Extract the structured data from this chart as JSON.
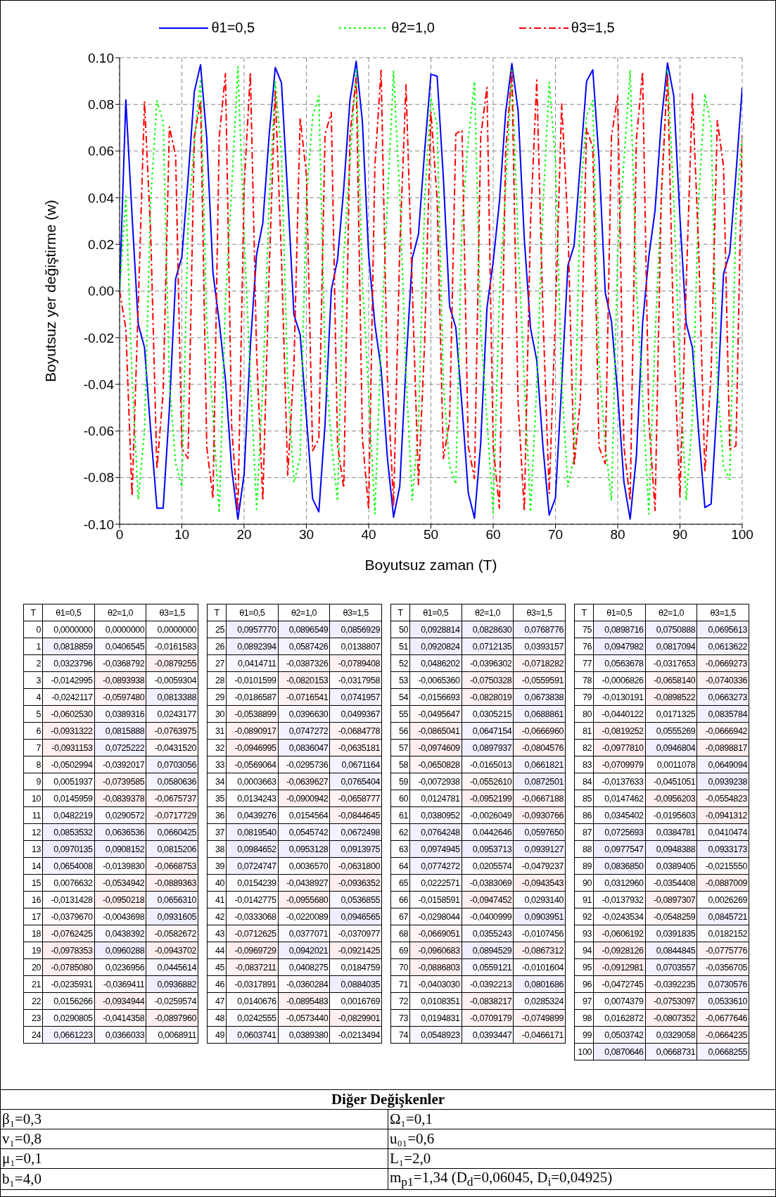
{
  "chart_data": [
    {
      "type": "line",
      "xlabel": "Boyutsuz zaman (T)",
      "ylabel": "Boyutsuz yer değiştirme (w)",
      "x": [
        0,
        1,
        2,
        3,
        4,
        5,
        6,
        7,
        8,
        9,
        10,
        11,
        12,
        13,
        14,
        15,
        16,
        17,
        18,
        19,
        20,
        21,
        22,
        23,
        24,
        25,
        26,
        27,
        28,
        29,
        30,
        31,
        32,
        33,
        34,
        35,
        36,
        37,
        38,
        39,
        40,
        41,
        42,
        43,
        44,
        45,
        46,
        47,
        48,
        49,
        50,
        51,
        52,
        53,
        54,
        55,
        56,
        57,
        58,
        59,
        60,
        61,
        62,
        63,
        64,
        65,
        66,
        67,
        68,
        69,
        70,
        71,
        72,
        73,
        74,
        75,
        76,
        77,
        78,
        79,
        80,
        81,
        82,
        83,
        84,
        85,
        86,
        87,
        88,
        89,
        90,
        91,
        92,
        93,
        94,
        95,
        96,
        97,
        98,
        99,
        100
      ],
      "series": [
        {
          "name": "θ1=0,5",
          "color": "#0000ff",
          "line_style": "solid",
          "values": [
            0.0,
            0.0818859,
            0.0323796,
            -0.0142995,
            -0.0242117,
            -0.060253,
            -0.0931322,
            -0.0931153,
            -0.0502994,
            0.0051937,
            0.0145959,
            0.0482219,
            0.0853532,
            0.0970135,
            0.0654008,
            0.0076632,
            -0.0131428,
            -0.037967,
            -0.0762425,
            -0.0978353,
            -0.078508,
            -0.0235931,
            0.0156266,
            0.0290805,
            0.0661223,
            0.095777,
            0.0892394,
            0.0414711,
            -0.0101599,
            -0.0186587,
            -0.0538899,
            -0.0890917,
            -0.0946995,
            -0.0569064,
            0.0003663,
            0.0134243,
            0.0439276,
            0.081954,
            0.0984652,
            0.0724747,
            0.0154239,
            -0.0142775,
            -0.0333068,
            -0.0712625,
            -0.0969729,
            -0.0837211,
            -0.0317891,
            0.0140676,
            0.0242555,
            0.0603741,
            0.0928814,
            0.0920824,
            0.0486202,
            -0.006536,
            -0.0156693,
            -0.0495647,
            -0.0865041,
            -0.0974609,
            -0.0650828,
            -0.0072938,
            0.0124781,
            0.0380952,
            0.0764248,
            0.0974945,
            0.0774272,
            0.0222571,
            -0.0158591,
            -0.0298044,
            -0.0669051,
            -0.0960683,
            -0.0886803,
            -0.040303,
            0.0108351,
            0.0194831,
            0.0548923,
            0.0898716,
            0.0947982,
            0.0563678,
            -0.0006826,
            -0.0130191,
            -0.0440122,
            -0.0819252,
            -0.097781,
            -0.0709979,
            -0.0137633,
            0.0147462,
            0.0345402,
            0.0725693,
            0.0977547,
            0.083685,
            0.031296,
            -0.0137932,
            -0.0243534,
            -0.0606192,
            -0.0928126,
            -0.0912981,
            -0.0472745,
            0.0074379,
            0.0162872,
            0.0503742,
            0.0870646
          ]
        },
        {
          "name": "θ2=1,0",
          "color": "#00ff00",
          "line_style": "dotted",
          "values": [
            0.0,
            0.0406545,
            -0.0368792,
            -0.0893938,
            -0.059748,
            0.0389316,
            0.0815888,
            0.0725222,
            -0.0392017,
            -0.0739585,
            -0.0839378,
            0.0290572,
            0.0636536,
            0.0908152,
            -0.013983,
            -0.0534942,
            -0.0950218,
            -0.0043698,
            0.0438392,
            0.0960288,
            0.0236956,
            -0.0369411,
            -0.0934944,
            -0.0414358,
            0.0366033,
            0.0896549,
            0.0587426,
            -0.0387326,
            -0.0820153,
            -0.0716541,
            0.039663,
            0.0747272,
            0.0836047,
            -0.0295736,
            -0.0639627,
            -0.0900942,
            0.0154564,
            0.0545742,
            0.0953128,
            0.003657,
            -0.0438927,
            -0.095568,
            -0.0220089,
            0.0377071,
            0.0942021,
            0.0408275,
            -0.0360284,
            -0.0895483,
            -0.057344,
            0.038938,
            0.082863,
            0.0712135,
            -0.0396302,
            -0.0750328,
            -0.0828019,
            0.0305215,
            0.0647154,
            0.0897937,
            -0.0165013,
            -0.055261,
            -0.0952199,
            -0.0026049,
            0.0442646,
            0.0953713,
            0.0205574,
            -0.0383069,
            -0.0947452,
            -0.0400999,
            0.0355243,
            0.0894529,
            0.0559121,
            -0.0392213,
            -0.0838217,
            -0.0709179,
            0.0393447,
            0.0750888,
            0.0817094,
            -0.0317653,
            -0.065814,
            -0.0898522,
            0.0171325,
            0.0555269,
            0.0946804,
            0.0011078,
            -0.0451051,
            -0.0956203,
            -0.0195603,
            0.0384781,
            0.0948388,
            0.0389405,
            -0.0354408,
            -0.0897307,
            -0.0548259,
            0.0391835,
            0.0844845,
            0.0703557,
            -0.0392235,
            -0.0753097,
            -0.0807352,
            0.0329058,
            0.0668731
          ]
        },
        {
          "name": "θ3=1,5",
          "color": "#ff0000",
          "line_style": "dashed",
          "values": [
            0.0,
            -0.0161583,
            -0.0879255,
            -0.0059304,
            0.0813388,
            0.0243177,
            -0.0763975,
            -0.043152,
            0.0703056,
            0.0580636,
            -0.0675737,
            -0.0717729,
            0.0660425,
            0.0815206,
            -0.0668753,
            -0.0889363,
            0.065631,
            0.0931605,
            -0.0582672,
            -0.0943702,
            0.0445614,
            0.0936882,
            -0.0259574,
            -0.089796,
            0.0068911,
            0.0856929,
            0.0138807,
            -0.0789408,
            -0.0317958,
            0.0741957,
            0.0499367,
            -0.0684778,
            -0.0635181,
            0.0671164,
            0.0765404,
            -0.0658777,
            -0.0844645,
            0.0672498,
            0.0913975,
            -0.06318,
            -0.0936352,
            0.0536855,
            0.0946565,
            -0.0370977,
            -0.0921425,
            0.0184759,
            0.0884035,
            0.0016769,
            -0.0829901,
            -0.0213494,
            0.0768776,
            0.0393157,
            -0.0718282,
            -0.0559591,
            0.0673838,
            0.0688861,
            -0.066696,
            -0.0804576,
            0.0661821,
            0.0872501,
            -0.0667188,
            -0.0930766,
            0.059765,
            0.0939127,
            -0.0479237,
            -0.0943543,
            0.029314,
            0.0903951,
            -0.0107456,
            -0.0867312,
            -0.0101604,
            0.0801686,
            0.0285324,
            -0.0749899,
            -0.0466171,
            0.0695613,
            0.0613622,
            -0.0669273,
            -0.0740336,
            0.0663273,
            0.0835784,
            -0.0666942,
            -0.0898817,
            0.0649094,
            0.0939238,
            -0.0554823,
            -0.0941312,
            0.0410474,
            0.0933173,
            -0.021555,
            -0.0887009,
            0.0026269,
            0.0845721,
            0.0182152,
            -0.0775776,
            -0.0356705,
            0.0730576,
            0.053361,
            -0.0677646,
            -0.0664235,
            0.0668255
          ]
        }
      ],
      "xlim": [
        0,
        100
      ],
      "xticks": [
        0,
        10,
        20,
        30,
        40,
        50,
        60,
        70,
        80,
        90,
        100
      ],
      "ylim": [
        -0.1,
        0.1
      ],
      "yticks": [
        {
          "value": -0.1,
          "label": "-0.10"
        },
        {
          "value": -0.08,
          "label": "-0.08"
        },
        {
          "value": -0.06,
          "label": "-0.06"
        },
        {
          "value": -0.04,
          "label": "-0.04"
        },
        {
          "value": -0.02,
          "label": "-0.02"
        },
        {
          "value": 0,
          "label": "0.00"
        },
        {
          "value": 0.02,
          "label": "0.02"
        },
        {
          "value": 0.04,
          "label": "0.04"
        },
        {
          "value": 0.06,
          "label": "0.06"
        },
        {
          "value": 0.08,
          "label": "0.08"
        },
        {
          "value": 0.1,
          "label": "0.10"
        }
      ],
      "grid": true,
      "legend": "top",
      "marker": "none",
      "annotations": [
        "Diğer Değişkenler",
        "β₁=0,3",
        "Ω₁=0,1",
        "v₁=0,8",
        "u₀₁=0,6",
        "μ₁=0,1",
        "L₁=2,0",
        "b₁=4,0",
        "m$_{p1}$=1,34 (D$_{d}$=0,06045, D$_{i}$=0,04925)"
      ]
    },
    {
      "type": "heatmap",
      "ylabel": "T",
      "categories": [
        "θ1=0,5",
        "θ2=1,0",
        "θ3=1,5"
      ],
      "y_categories": [
        "0",
        "1",
        "2",
        "3",
        "4",
        "5",
        "6",
        "7",
        "8",
        "9",
        "10",
        "11",
        "12",
        "13",
        "14",
        "15",
        "16",
        "17",
        "18",
        "19",
        "20",
        "21",
        "22",
        "23",
        "24"
      ],
      "cells": [
        [
          0.0,
          0.0,
          0.0
        ],
        [
          0.0818859,
          0.0406545,
          -0.0161583
        ],
        [
          0.0323796,
          -0.0368792,
          -0.0879255
        ],
        [
          -0.0142995,
          -0.0893938,
          -0.0059304
        ],
        [
          -0.0242117,
          -0.059748,
          0.0813388
        ],
        [
          -0.060253,
          0.0389316,
          0.0243177
        ],
        [
          -0.0931322,
          0.0815888,
          -0.0763975
        ],
        [
          -0.0931153,
          0.0725222,
          -0.043152
        ],
        [
          -0.0502994,
          -0.0392017,
          0.0703056
        ],
        [
          0.0051937,
          -0.0739585,
          0.0580636
        ],
        [
          0.0145959,
          -0.0839378,
          -0.0675737
        ],
        [
          0.0482219,
          0.0290572,
          -0.0717729
        ],
        [
          0.0853532,
          0.0636536,
          0.0660425
        ],
        [
          0.0970135,
          0.0908152,
          0.0815206
        ],
        [
          0.0654008,
          -0.013983,
          -0.0668753
        ],
        [
          0.0076632,
          -0.0534942,
          -0.0889363
        ],
        [
          -0.0131428,
          -0.0950218,
          0.065631
        ],
        [
          -0.037967,
          -0.0043698,
          0.0931605
        ],
        [
          -0.0762425,
          0.0438392,
          -0.0582672
        ],
        [
          -0.0978353,
          0.0960288,
          -0.0943702
        ],
        [
          -0.078508,
          0.0236956,
          0.0445614
        ],
        [
          -0.0235931,
          -0.0369411,
          0.0936882
        ],
        [
          0.0156266,
          -0.0934944,
          -0.0259574
        ],
        [
          0.0290805,
          -0.0414358,
          -0.089796
        ],
        [
          0.0661223,
          0.0366033,
          0.0068911
        ]
      ],
      "cell_labels": [
        [
          "0,0000000",
          "0,0000000",
          "0,0000000"
        ],
        [
          "0,0818859",
          "0,0406545",
          "-0,0161583"
        ],
        [
          "0,0323796",
          "-0,0368792",
          "-0,0879255"
        ],
        [
          "-0,0142995",
          "-0,0893938",
          "-0,0059304"
        ],
        [
          "-0,0242117",
          "-0,0597480",
          "0,0813388"
        ],
        [
          "-0,0602530",
          "0,0389316",
          "0,0243177"
        ],
        [
          "-0,0931322",
          "0,0815888",
          "-0,0763975"
        ],
        [
          "-0,0931153",
          "0,0725222",
          "-0,0431520"
        ],
        [
          "-0,0502994",
          "-0,0392017",
          "0,0703056"
        ],
        [
          "0,0051937",
          "-0,0739585",
          "0,0580636"
        ],
        [
          "0,0145959",
          "-0,0839378",
          "-0,0675737"
        ],
        [
          "0,0482219",
          "0,0290572",
          "-0,0717729"
        ],
        [
          "0,0853532",
          "0,0636536",
          "0,0660425"
        ],
        [
          "0,0970135",
          "0,0908152",
          "0,0815206"
        ],
        [
          "0,0654008",
          "-0,0139830",
          "-0,0668753"
        ],
        [
          "0,0076632",
          "-0,0534942",
          "-0,0889363"
        ],
        [
          "-0,0131428",
          "-0,0950218",
          "0,0656310"
        ],
        [
          "-0,0379670",
          "-0,0043698",
          "0,0931605"
        ],
        [
          "-0,0762425",
          "0,0438392",
          "-0,0582672"
        ],
        [
          "-0,0978353",
          "0,0960288",
          "-0,0943702"
        ],
        [
          "-0,0785080",
          "0,0236956",
          "0,0445614"
        ],
        [
          "-0,0235931",
          "-0,0369411",
          "0,0936882"
        ],
        [
          "0,0156266",
          "-0,0934944",
          "-0,0259574"
        ],
        [
          "0,0290805",
          "-0,0414358",
          "-0,0897960"
        ],
        [
          "0,0661223",
          "0,0366033",
          "0,0068911"
        ]
      ]
    },
    {
      "type": "heatmap",
      "ylabel": "T",
      "categories": [
        "θ1=0,5",
        "θ2=1,0",
        "θ3=1,5"
      ],
      "y_categories": [
        "25",
        "26",
        "27",
        "28",
        "29",
        "30",
        "31",
        "32",
        "33",
        "34",
        "35",
        "36",
        "37",
        "38",
        "39",
        "40",
        "41",
        "42",
        "43",
        "44",
        "45",
        "46",
        "47",
        "48",
        "49"
      ],
      "cells": [
        [
          0.095777,
          0.0896549,
          0.0856929
        ],
        [
          0.0892394,
          0.0587426,
          0.0138807
        ],
        [
          0.0414711,
          -0.0387326,
          -0.0789408
        ],
        [
          -0.0101599,
          -0.0820153,
          -0.0317958
        ],
        [
          -0.0186587,
          -0.0716541,
          0.0741957
        ],
        [
          -0.0538899,
          0.039663,
          0.0499367
        ],
        [
          -0.0890917,
          0.0747272,
          -0.0684778
        ],
        [
          -0.0946995,
          0.0836047,
          -0.0635181
        ],
        [
          -0.0569064,
          -0.0295736,
          0.0671164
        ],
        [
          0.0003663,
          -0.0639627,
          0.0765404
        ],
        [
          0.0134243,
          -0.0900942,
          -0.0658777
        ],
        [
          0.0439276,
          0.0154564,
          -0.0844645
        ],
        [
          0.081954,
          0.0545742,
          0.0672498
        ],
        [
          0.0984652,
          0.0953128,
          0.0913975
        ],
        [
          0.0724747,
          0.003657,
          -0.06318
        ],
        [
          0.0154239,
          -0.0438927,
          -0.0936352
        ],
        [
          -0.0142775,
          -0.095568,
          0.0536855
        ],
        [
          -0.0333068,
          -0.0220089,
          0.0946565
        ],
        [
          -0.0712625,
          0.0377071,
          -0.0370977
        ],
        [
          -0.0969729,
          0.0942021,
          -0.0921425
        ],
        [
          -0.0837211,
          0.0408275,
          0.0184759
        ],
        [
          -0.0317891,
          -0.0360284,
          0.0884035
        ],
        [
          0.0140676,
          -0.0895483,
          0.0016769
        ],
        [
          0.0242555,
          -0.057344,
          -0.0829901
        ],
        [
          0.0603741,
          0.038938,
          -0.0213494
        ]
      ],
      "cell_labels": [
        [
          "0,0957770",
          "0,0896549",
          "0,0856929"
        ],
        [
          "0,0892394",
          "0,0587426",
          "0,0138807"
        ],
        [
          "0,0414711",
          "-0,0387326",
          "-0,0789408"
        ],
        [
          "-0,0101599",
          "-0,0820153",
          "-0,0317958"
        ],
        [
          "-0,0186587",
          "-0,0716541",
          "0,0741957"
        ],
        [
          "-0,0538899",
          "0,0396630",
          "0,0499367"
        ],
        [
          "-0,0890917",
          "0,0747272",
          "-0,0684778"
        ],
        [
          "-0,0946995",
          "0,0836047",
          "-0,0635181"
        ],
        [
          "-0,0569064",
          "-0,0295736",
          "0,0671164"
        ],
        [
          "0,0003663",
          "-0,0639627",
          "0,0765404"
        ],
        [
          "0,0134243",
          "-0,0900942",
          "-0,0658777"
        ],
        [
          "0,0439276",
          "0,0154564",
          "-0,0844645"
        ],
        [
          "0,0819540",
          "0,0545742",
          "0,0672498"
        ],
        [
          "0,0984652",
          "0,0953128",
          "0,0913975"
        ],
        [
          "0,0724747",
          "0,0036570",
          "-0,0631800"
        ],
        [
          "0,0154239",
          "-0,0438927",
          "-0,0936352"
        ],
        [
          "-0,0142775",
          "-0,0955680",
          "0,0536855"
        ],
        [
          "-0,0333068",
          "-0,0220089",
          "0,0946565"
        ],
        [
          "-0,0712625",
          "0,0377071",
          "-0,0370977"
        ],
        [
          "-0,0969729",
          "0,0942021",
          "-0,0921425"
        ],
        [
          "-0,0837211",
          "0,0408275",
          "0,0184759"
        ],
        [
          "-0,0317891",
          "-0,0360284",
          "0,0884035"
        ],
        [
          "0,0140676",
          "-0,0895483",
          "0,0016769"
        ],
        [
          "0,0242555",
          "-0,0573440",
          "-0,0829901"
        ],
        [
          "0,0603741",
          "0,0389380",
          "-0,0213494"
        ]
      ]
    },
    {
      "type": "heatmap",
      "ylabel": "T",
      "categories": [
        "θ1=0,5",
        "θ2=1,0",
        "θ3=1,5"
      ],
      "y_categories": [
        "50",
        "51",
        "52",
        "53",
        "54",
        "55",
        "56",
        "57",
        "58",
        "59",
        "60",
        "61",
        "62",
        "63",
        "64",
        "65",
        "66",
        "67",
        "68",
        "69",
        "70",
        "71",
        "72",
        "73",
        "74"
      ],
      "cells": [
        [
          0.0928814,
          0.082863,
          0.0768776
        ],
        [
          0.0920824,
          0.0712135,
          0.0393157
        ],
        [
          0.0486202,
          -0.0396302,
          -0.0718282
        ],
        [
          -0.006536,
          -0.0750328,
          -0.0559591
        ],
        [
          -0.0156693,
          -0.0828019,
          0.0673838
        ],
        [
          -0.0495647,
          0.0305215,
          0.0688861
        ],
        [
          -0.0865041,
          0.0647154,
          -0.066696
        ],
        [
          -0.0974609,
          0.0897937,
          -0.0804576
        ],
        [
          -0.0650828,
          -0.0165013,
          0.0661821
        ],
        [
          -0.0072938,
          -0.055261,
          0.0872501
        ],
        [
          0.0124781,
          -0.0952199,
          -0.0667188
        ],
        [
          0.0380952,
          -0.0026049,
          -0.0930766
        ],
        [
          0.0764248,
          0.0442646,
          0.059765
        ],
        [
          0.0974945,
          0.0953713,
          0.0939127
        ],
        [
          0.0774272,
          0.0205574,
          -0.0479237
        ],
        [
          0.0222571,
          -0.0383069,
          -0.0943543
        ],
        [
          -0.0158591,
          -0.0947452,
          0.029314
        ],
        [
          -0.0298044,
          -0.0400999,
          0.0903951
        ],
        [
          -0.0669051,
          0.0355243,
          -0.0107456
        ],
        [
          -0.0960683,
          0.0894529,
          -0.0867312
        ],
        [
          -0.0886803,
          0.0559121,
          -0.0101604
        ],
        [
          -0.040303,
          -0.0392213,
          0.0801686
        ],
        [
          0.0108351,
          -0.0838217,
          0.0285324
        ],
        [
          0.0194831,
          -0.0709179,
          -0.0749899
        ],
        [
          0.0548923,
          0.0393447,
          -0.0466171
        ]
      ],
      "cell_labels": [
        [
          "0,0928814",
          "0,0828630",
          "0,0768776"
        ],
        [
          "0,0920824",
          "0,0712135",
          "0,0393157"
        ],
        [
          "0,0486202",
          "-0,0396302",
          "-0,0718282"
        ],
        [
          "-0,0065360",
          "-0,0750328",
          "-0,0559591"
        ],
        [
          "-0,0156693",
          "-0,0828019",
          "0,0673838"
        ],
        [
          "-0,0495647",
          "0,0305215",
          "0,0688861"
        ],
        [
          "-0,0865041",
          "0,0647154",
          "-0,0666960"
        ],
        [
          "-0,0974609",
          "0,0897937",
          "-0,0804576"
        ],
        [
          "-0,0650828",
          "-0,0165013",
          "0,0661821"
        ],
        [
          "-0,0072938",
          "-0,0552610",
          "0,0872501"
        ],
        [
          "0,0124781",
          "-0,0952199",
          "-0,0667188"
        ],
        [
          "0,0380952",
          "-0,0026049",
          "-0,0930766"
        ],
        [
          "0,0764248",
          "0,0442646",
          "0,0597650"
        ],
        [
          "0,0974945",
          "0,0953713",
          "0,0939127"
        ],
        [
          "0,0774272",
          "0,0205574",
          "-0,0479237"
        ],
        [
          "0,0222571",
          "-0,0383069",
          "-0,0943543"
        ],
        [
          "-0,0158591",
          "-0,0947452",
          "0,0293140"
        ],
        [
          "-0,0298044",
          "-0,0400999",
          "0,0903951"
        ],
        [
          "-0,0669051",
          "0,0355243",
          "-0,0107456"
        ],
        [
          "-0,0960683",
          "0,0894529",
          "-0,0867312"
        ],
        [
          "-0,0886803",
          "0,0559121",
          "-0,0101604"
        ],
        [
          "-0,0403030",
          "-0,0392213",
          "0,0801686"
        ],
        [
          "0,0108351",
          "-0,0838217",
          "0,0285324"
        ],
        [
          "0,0194831",
          "-0,0709179",
          "-0,0749899"
        ],
        [
          "0,0548923",
          "0,0393447",
          "-0,0466171"
        ]
      ]
    },
    {
      "type": "heatmap",
      "ylabel": "T",
      "categories": [
        "θ1=0,5",
        "θ2=1,0",
        "θ3=1,5"
      ],
      "y_categories": [
        "75",
        "76",
        "77",
        "78",
        "79",
        "80",
        "81",
        "82",
        "83",
        "84",
        "85",
        "86",
        "87",
        "88",
        "89",
        "90",
        "91",
        "92",
        "93",
        "94",
        "95",
        "96",
        "97",
        "98",
        "99",
        "100"
      ],
      "cells": [
        [
          0.0898716,
          0.0750888,
          0.0695613
        ],
        [
          0.0947982,
          0.0817094,
          0.0613622
        ],
        [
          0.0563678,
          -0.0317653,
          -0.0669273
        ],
        [
          -0.0006826,
          -0.065814,
          -0.0740336
        ],
        [
          -0.0130191,
          -0.0898522,
          0.0663273
        ],
        [
          -0.0440122,
          0.0171325,
          0.0835784
        ],
        [
          -0.0819252,
          0.0555269,
          -0.0666942
        ],
        [
          -0.097781,
          0.0946804,
          -0.0898817
        ],
        [
          -0.0709979,
          0.0011078,
          0.0649094
        ],
        [
          -0.0137633,
          -0.0451051,
          0.0939238
        ],
        [
          0.0147462,
          -0.0956203,
          -0.0554823
        ],
        [
          0.0345402,
          -0.0195603,
          -0.0941312
        ],
        [
          0.0725693,
          0.0384781,
          0.0410474
        ],
        [
          0.0977547,
          0.0948388,
          0.0933173
        ],
        [
          0.083685,
          0.0389405,
          -0.021555
        ],
        [
          0.031296,
          -0.0354408,
          -0.0887009
        ],
        [
          -0.0137932,
          -0.0897307,
          0.0026269
        ],
        [
          -0.0243534,
          -0.0548259,
          0.0845721
        ],
        [
          -0.0606192,
          0.0391835,
          0.0182152
        ],
        [
          -0.0928126,
          0.0844845,
          -0.0775776
        ],
        [
          -0.0912981,
          0.0703557,
          -0.0356705
        ],
        [
          -0.0472745,
          -0.0392235,
          0.0730576
        ],
        [
          0.0074379,
          -0.0753097,
          0.053361
        ],
        [
          0.0162872,
          -0.0807352,
          -0.0677646
        ],
        [
          0.0503742,
          0.0329058,
          -0.0664235
        ],
        [
          0.0870646,
          0.0668731,
          0.0668255
        ]
      ],
      "cell_labels": [
        [
          "0,0898716",
          "0,0750888",
          "0,0695613"
        ],
        [
          "0,0947982",
          "0,0817094",
          "0,0613622"
        ],
        [
          "0,0563678",
          "-0,0317653",
          "-0,0669273"
        ],
        [
          "-0,0006826",
          "-0,0658140",
          "-0,0740336"
        ],
        [
          "-0,0130191",
          "-0,0898522",
          "0,0663273"
        ],
        [
          "-0,0440122",
          "0,0171325",
          "0,0835784"
        ],
        [
          "-0,0819252",
          "0,0555269",
          "-0,0666942"
        ],
        [
          "-0,0977810",
          "0,0946804",
          "-0,0898817"
        ],
        [
          "-0,0709979",
          "0,0011078",
          "0,0649094"
        ],
        [
          "-0,0137633",
          "-0,0451051",
          "0,0939238"
        ],
        [
          "0,0147462",
          "-0,0956203",
          "-0,0554823"
        ],
        [
          "0,0345402",
          "-0,0195603",
          "-0,0941312"
        ],
        [
          "0,0725693",
          "0,0384781",
          "0,0410474"
        ],
        [
          "0,0977547",
          "0,0948388",
          "0,0933173"
        ],
        [
          "0,0836850",
          "0,0389405",
          "-0,0215550"
        ],
        [
          "0,0312960",
          "-0,0354408",
          "-0,0887009"
        ],
        [
          "-0,0137932",
          "-0,0897307",
          "0,0026269"
        ],
        [
          "-0,0243534",
          "-0,0548259",
          "0,0845721"
        ],
        [
          "-0,0606192",
          "0,0391835",
          "0,0182152"
        ],
        [
          "-0,0928126",
          "0,0844845",
          "-0,0775776"
        ],
        [
          "-0,0912981",
          "0,0703557",
          "-0,0356705"
        ],
        [
          "-0,0472745",
          "-0,0392235",
          "0,0730576"
        ],
        [
          "0,0074379",
          "-0,0753097",
          "0,0533610"
        ],
        [
          "0,0162872",
          "-0,0807352",
          "-0,0677646"
        ],
        [
          "0,0503742",
          "0,0329058",
          "-0,0664235"
        ],
        [
          "0,0870646",
          "0,0668731",
          "0,0668255"
        ]
      ]
    }
  ]
}
